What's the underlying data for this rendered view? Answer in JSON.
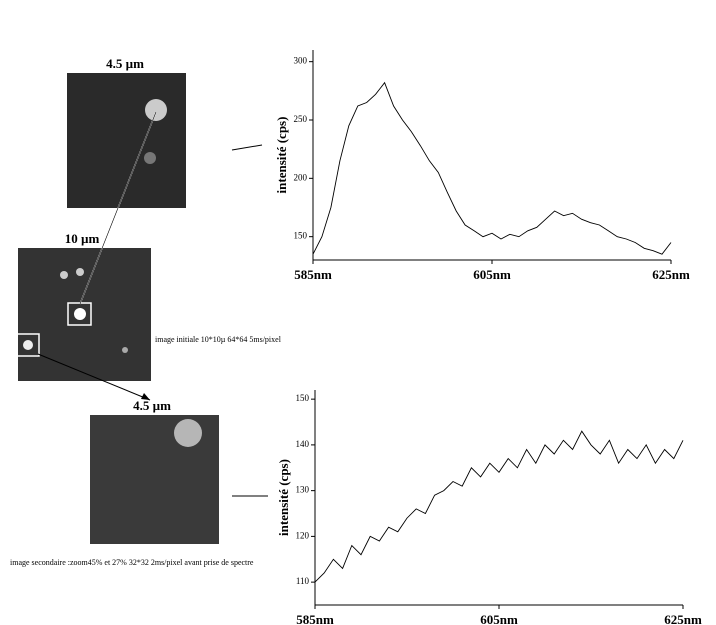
{
  "figure": {
    "top_image_label": "4.5 µm",
    "middle_image_label": "10 µm",
    "bottom_image_label": "4.5 µm",
    "middle_caption": "image initiale 10*10µ 64*64 5ms/pixel",
    "bottom_caption": "image secondaire :zoom45% et 27% 32*32 2ms/pixel avant prise de spectre"
  },
  "chart_data": [
    {
      "type": "line",
      "y_label": "intensité (cps)",
      "color": "#000000",
      "x": [
        585,
        586,
        587,
        588,
        589,
        590,
        591,
        592,
        593,
        594,
        595,
        596,
        597,
        598,
        599,
        600,
        601,
        602,
        603,
        604,
        605,
        606,
        607,
        608,
        609,
        610,
        611,
        612,
        613,
        614,
        615,
        616,
        617,
        618,
        619,
        620,
        621,
        622,
        623,
        624,
        625
      ],
      "values": [
        135,
        150,
        175,
        215,
        245,
        262,
        265,
        272,
        282,
        262,
        250,
        240,
        228,
        215,
        205,
        188,
        172,
        160,
        155,
        150,
        153,
        148,
        152,
        150,
        155,
        158,
        165,
        172,
        168,
        170,
        165,
        162,
        160,
        155,
        150,
        148,
        145,
        140,
        138,
        135,
        145
      ],
      "xlim": [
        585,
        625
      ],
      "xticks": [
        {
          "value": 585,
          "label": "585nm"
        },
        {
          "value": 605,
          "label": "605nm"
        },
        {
          "value": 625,
          "label": "625nm"
        }
      ],
      "ylim": [
        130,
        310
      ],
      "yticks": [
        150,
        200,
        250,
        300
      ]
    },
    {
      "type": "line",
      "y_label": "intensité (cps)",
      "color": "#000000",
      "x": [
        585,
        586,
        587,
        588,
        589,
        590,
        591,
        592,
        593,
        594,
        595,
        596,
        597,
        598,
        599,
        600,
        601,
        602,
        603,
        604,
        605,
        606,
        607,
        608,
        609,
        610,
        611,
        612,
        613,
        614,
        615,
        616,
        617,
        618,
        619,
        620,
        621,
        622,
        623,
        624,
        625
      ],
      "values": [
        110,
        112,
        115,
        113,
        118,
        116,
        120,
        119,
        122,
        121,
        124,
        126,
        125,
        129,
        130,
        132,
        131,
        135,
        133,
        136,
        134,
        137,
        135,
        139,
        136,
        140,
        138,
        141,
        139,
        143,
        140,
        138,
        141,
        136,
        139,
        137,
        140,
        136,
        139,
        137,
        141
      ],
      "xlim": [
        585,
        625
      ],
      "xticks": [
        {
          "value": 585,
          "label": "585nm"
        },
        {
          "value": 605,
          "label": "605nm"
        },
        {
          "value": 625,
          "label": "625nm"
        }
      ],
      "ylim": [
        105,
        152
      ],
      "yticks": [
        110,
        120,
        130,
        140,
        150
      ]
    }
  ]
}
